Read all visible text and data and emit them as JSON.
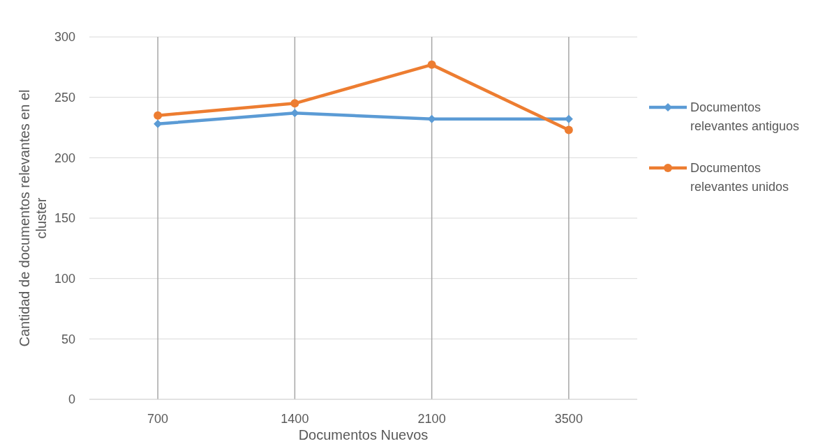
{
  "chart_data": {
    "type": "line",
    "xlabel": "Documentos Nuevos",
    "ylabel": "Cantidad de documentos relevantes en el cluster",
    "categories": [
      "700",
      "1400",
      "2100",
      "3500"
    ],
    "series": [
      {
        "name": "Documentos relevantes antiguos",
        "color": "#5b9bd5",
        "marker": "diamond",
        "values": [
          228,
          237,
          232,
          232
        ]
      },
      {
        "name": "Documentos relevantes unidos",
        "color": "#ed7d31",
        "marker": "circle",
        "values": [
          235,
          245,
          277,
          223
        ]
      }
    ],
    "ylim": [
      0,
      300
    ],
    "yticks": [
      0,
      50,
      100,
      150,
      200,
      250,
      300
    ],
    "grid": true,
    "legend": "right",
    "line_style": "solid"
  }
}
